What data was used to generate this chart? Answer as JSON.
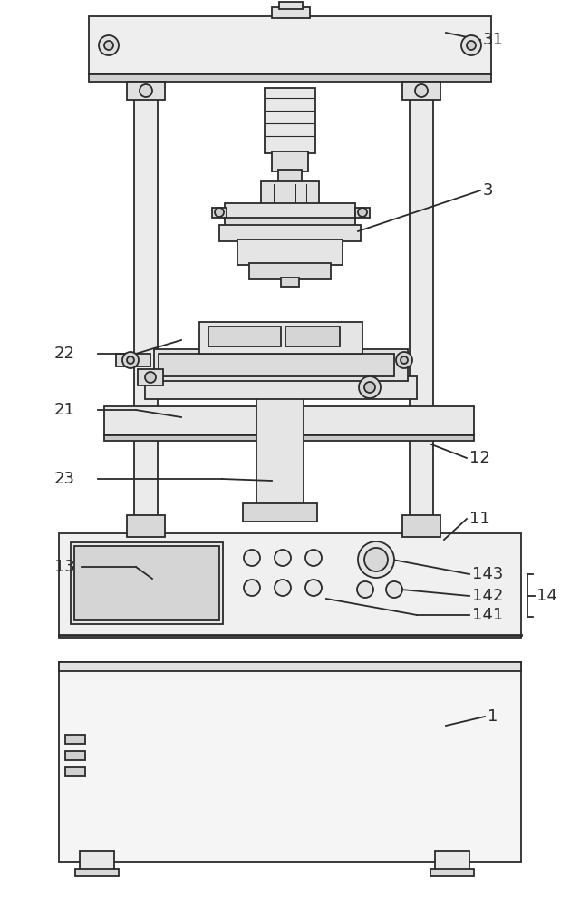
{
  "bg_color": "#ffffff",
  "line_color": "#2a2a2a",
  "label_fontsize": 13,
  "figsize": [
    6.4,
    10.0
  ],
  "dpi": 100
}
